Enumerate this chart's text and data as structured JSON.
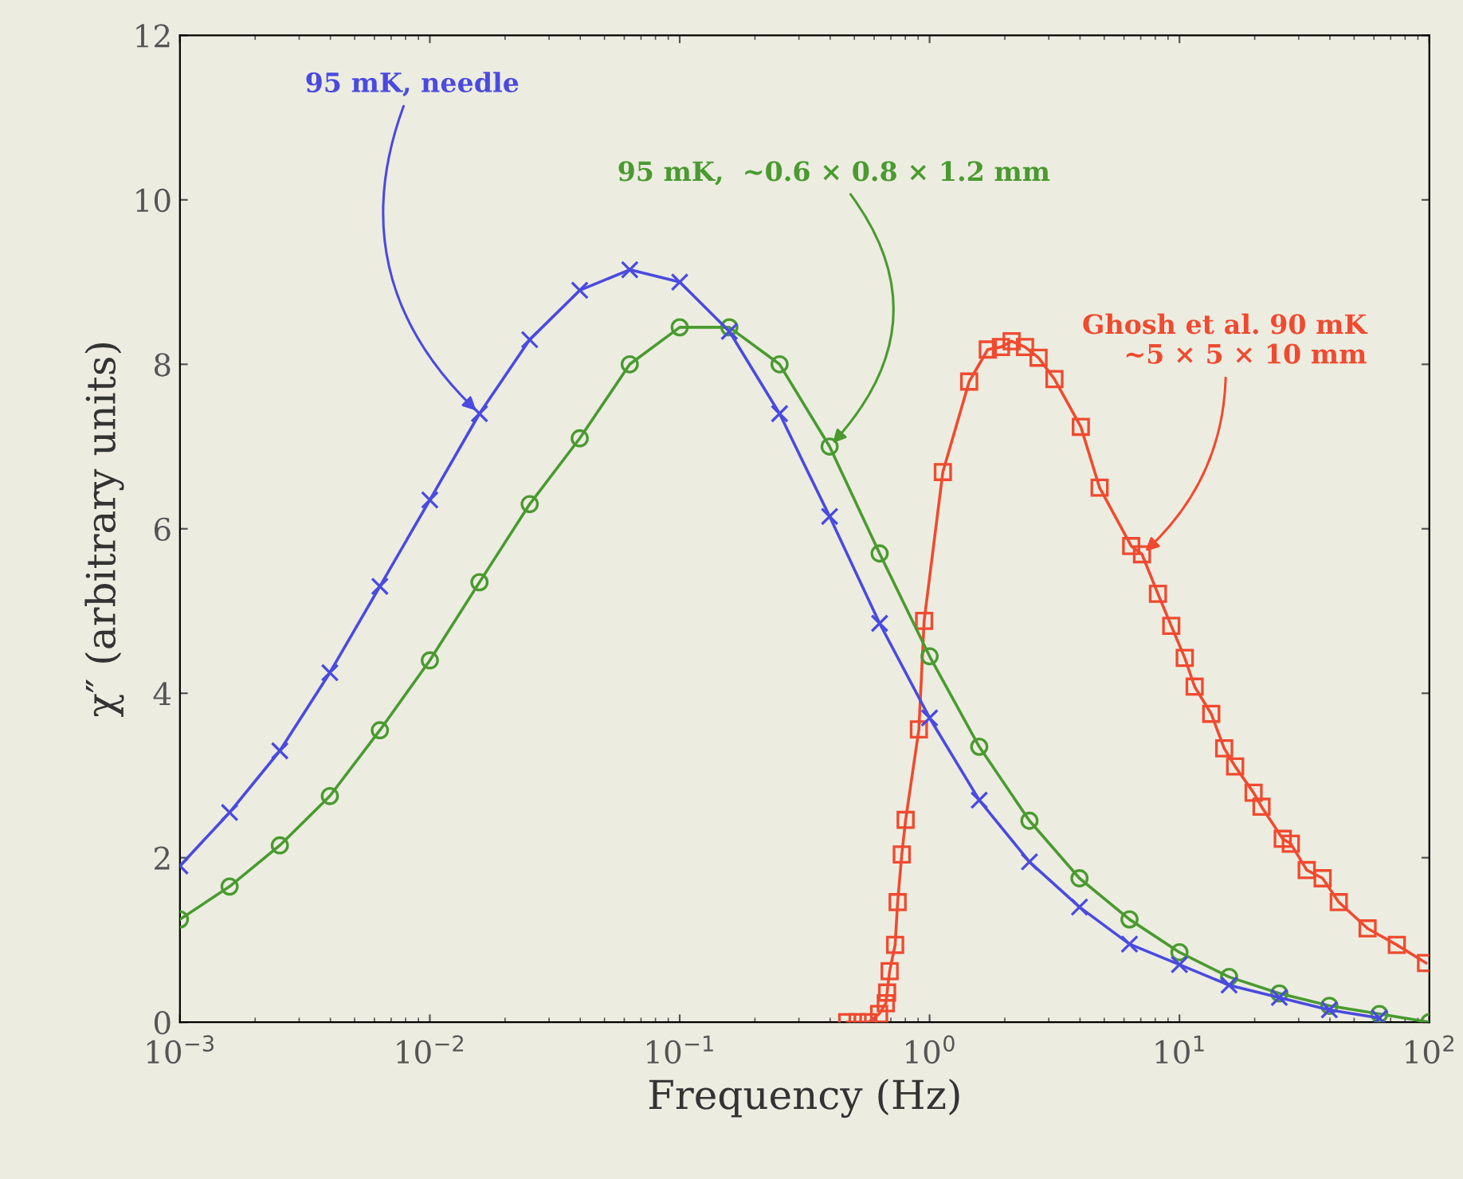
{
  "chart_data": {
    "type": "line",
    "xlabel": "Frequency (Hz)",
    "ylabel": "χ″ (arbitrary units)",
    "log": "x",
    "xlim": [
      0.001,
      100
    ],
    "ylim": [
      0,
      12
    ],
    "xticks": [
      {
        "value": 0.001,
        "label": "10$^{−3}$"
      },
      {
        "value": 0.01,
        "label": "10$^{−2}$"
      },
      {
        "value": 0.1,
        "label": "10$^{−1}$"
      },
      {
        "value": 1,
        "label": "10$^{0}$"
      },
      {
        "value": 10,
        "label": "10$^{1}$"
      },
      {
        "value": 100,
        "label": "10$^{2}$"
      }
    ],
    "yticks": [
      0,
      2,
      4,
      6,
      8,
      10,
      12
    ],
    "grid": false,
    "series": [
      {
        "color": "#4a4ae0",
        "marker": "cross",
        "x": [
          0.001,
          0.00158,
          0.00251,
          0.00398,
          0.00631,
          0.01,
          0.0158,
          0.0251,
          0.0398,
          0.0631,
          0.1,
          0.158,
          0.251,
          0.398,
          0.631,
          1,
          1.58,
          2.51,
          3.98,
          6.31,
          10,
          15.8,
          25.1,
          39.8,
          63.1
        ],
        "values": [
          1.9,
          2.55,
          3.3,
          4.25,
          5.3,
          6.35,
          7.4,
          8.3,
          8.9,
          9.15,
          9.0,
          8.4,
          7.4,
          6.15,
          4.85,
          3.7,
          2.7,
          1.95,
          1.4,
          0.95,
          0.7,
          0.45,
          0.3,
          0.15,
          0.05
        ]
      },
      {
        "color": "#4a9a30",
        "marker": "circle",
        "x": [
          0.001,
          0.00158,
          0.00251,
          0.00398,
          0.00631,
          0.01,
          0.0158,
          0.0251,
          0.0398,
          0.0631,
          0.1,
          0.158,
          0.251,
          0.398,
          0.631,
          1,
          1.58,
          2.51,
          3.98,
          6.31,
          10,
          15.8,
          25.1,
          39.8,
          63.1,
          100
        ],
        "values": [
          1.25,
          1.65,
          2.15,
          2.75,
          3.55,
          4.4,
          5.35,
          6.3,
          7.1,
          8.0,
          8.45,
          8.45,
          8.0,
          7.0,
          5.7,
          4.45,
          3.35,
          2.45,
          1.75,
          1.25,
          0.85,
          0.55,
          0.35,
          0.2,
          0.1,
          0.0
        ]
      },
      {
        "color": "#f04a30",
        "marker": "square",
        "x": [
          0.468,
          0.515,
          0.569,
          0.628,
          0.668,
          0.676,
          0.692,
          0.728,
          0.745,
          0.774,
          0.802,
          0.906,
          0.951,
          1.13,
          1.44,
          1.71,
          1.93,
          2.13,
          2.41,
          2.73,
          3.16,
          4.03,
          4.79,
          6.41,
          7.08,
          8.2,
          9.27,
          10.5,
          11.5,
          13.4,
          15.1,
          16.7,
          19.8,
          21.3,
          25.9,
          27.9,
          32.3,
          37.4,
          43.4,
          56.6,
          74.1,
          97.0
        ],
        "values": [
          0.0,
          0.0,
          0.0,
          0.1,
          0.23,
          0.36,
          0.62,
          0.94,
          1.46,
          2.04,
          2.46,
          3.56,
          4.88,
          6.69,
          7.79,
          8.18,
          8.21,
          8.28,
          8.21,
          8.08,
          7.82,
          7.24,
          6.5,
          5.79,
          5.69,
          5.21,
          4.82,
          4.43,
          4.08,
          3.75,
          3.33,
          3.11,
          2.79,
          2.62,
          2.23,
          2.17,
          1.85,
          1.75,
          1.46,
          1.14,
          0.94,
          0.72
        ]
      }
    ],
    "annotations": [
      {
        "text": "95 mK, needle",
        "x": 0.0158,
        "y": 7.4
      },
      {
        "text": "95 mK,  ~0.6 × 0.8 × 1.2 mm",
        "x": 0.398,
        "y": 7.0
      },
      {
        "text": "Ghosh et al. 90 mK\n~5 × 5 × 10 mm",
        "x": 7.08,
        "y": 5.69
      }
    ]
  }
}
